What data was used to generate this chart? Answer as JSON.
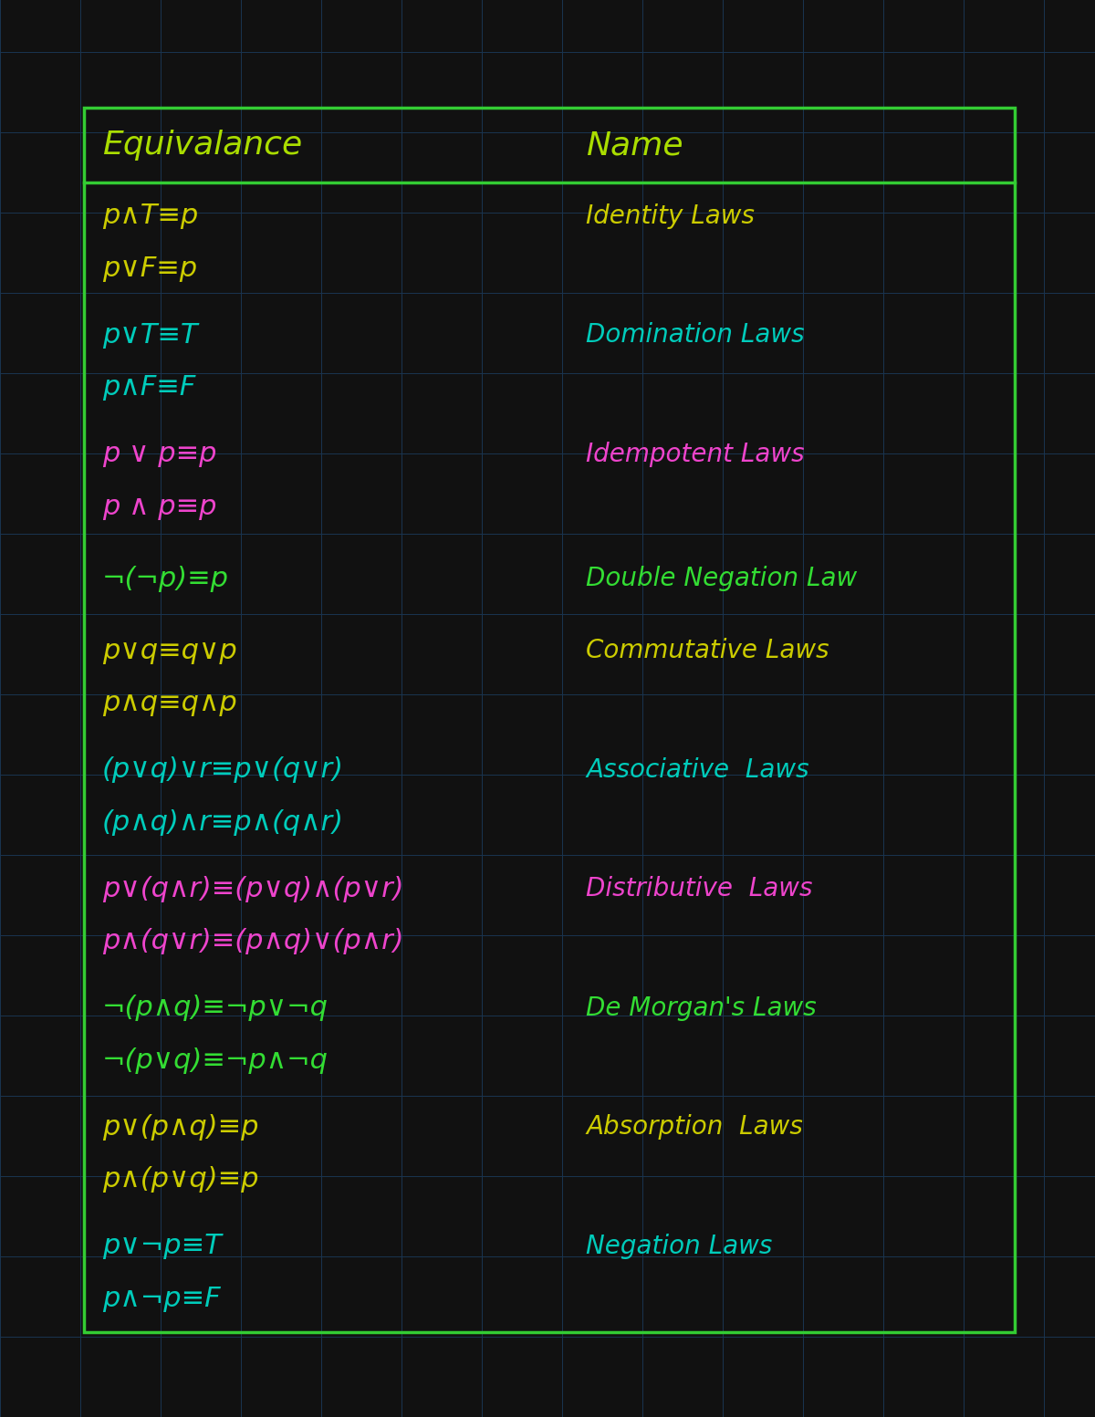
{
  "bg_color": "#111111",
  "grid_color": "#1a3550",
  "border_color": "#33cc33",
  "header_color": "#aadd00",
  "rows": [
    {
      "lines": [
        "p∧T≡p",
        "p∨F≡p"
      ],
      "name": "Identity Laws",
      "eq_color": "#cccc00",
      "name_color": "#cccc00",
      "name_line": 0
    },
    {
      "lines": [
        "p∨T≡T",
        "p∧F≡F"
      ],
      "name": "Domination Laws",
      "eq_color": "#00ccbb",
      "name_color": "#00ccbb",
      "name_line": 0
    },
    {
      "lines": [
        "p ∨ p≡p",
        "p ∧ p≡p"
      ],
      "name": "Idempotent Laws",
      "eq_color": "#ee44cc",
      "name_color": "#ee44cc",
      "name_line": 0
    },
    {
      "lines": [
        "¬(¬p)≡p"
      ],
      "name": "Double Negation Law",
      "eq_color": "#33dd33",
      "name_color": "#33dd33",
      "name_line": 0
    },
    {
      "lines": [
        "p∨q≡q∨p",
        "p∧q≡q∧p"
      ],
      "name": "Commutative Laws",
      "eq_color": "#cccc00",
      "name_color": "#cccc00",
      "name_line": 0
    },
    {
      "lines": [
        "(p∨q)∨r≡p∨(q∨r)",
        "(p∧q)∧r≡p∧(q∧r)"
      ],
      "name": "Associative  Laws",
      "eq_color": "#00ccbb",
      "name_color": "#00ccbb",
      "name_line": 0
    },
    {
      "lines": [
        "p∨(q∧r)≡(p∨q)∧(p∨r)",
        "p∧(q∨r)≡(p∧q)∨(p∧r)"
      ],
      "name": "Distributive  Laws",
      "eq_color": "#ee44cc",
      "name_color": "#ee44cc",
      "name_line": 0
    },
    {
      "lines": [
        "¬(p∧q)≡¬p∨¬q",
        "¬(p∨q)≡¬p∧¬q"
      ],
      "name": "De Morgan's Laws",
      "eq_color": "#33dd33",
      "name_color": "#33dd33",
      "name_line": 0
    },
    {
      "lines": [
        "p∨(p∧q)≡p",
        "p∧(p∨q)≡p"
      ],
      "name": "Absorption  Laws",
      "eq_color": "#cccc00",
      "name_color": "#cccc00",
      "name_line": 0
    },
    {
      "lines": [
        "p∨¬p≡T",
        "p∧¬p≡F"
      ],
      "name": "Negation Laws",
      "eq_color": "#00ccbb",
      "name_color": "#00ccbb",
      "name_line": 0
    }
  ]
}
